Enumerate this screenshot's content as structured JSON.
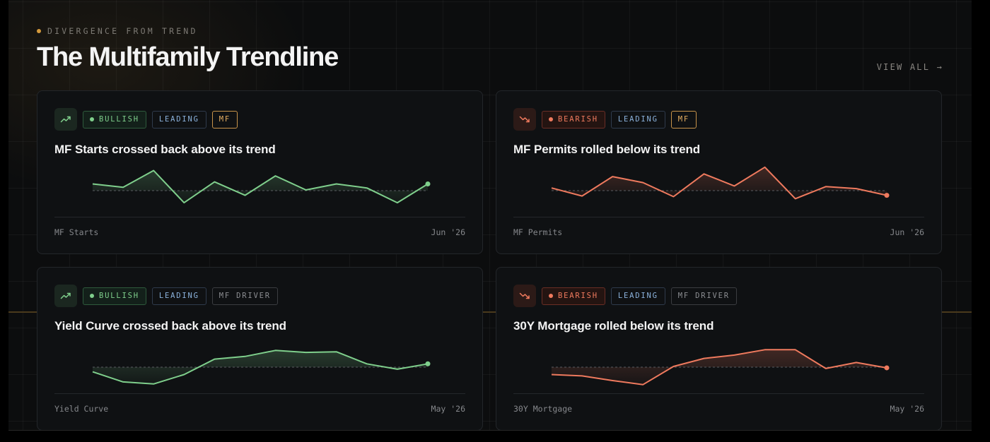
{
  "header": {
    "eyebrow": "DIVERGENCE FROM TREND",
    "title": "The Multifamily Trendline",
    "view_all": "VIEW ALL →"
  },
  "colors": {
    "bullish": "#7fcf8c",
    "bearish": "#ef7a5e",
    "leading": "#8bb2dc",
    "mf_tag": "#e5ae60",
    "accent_dot": "#d49a3c"
  },
  "cards": [
    {
      "icon": "trend-up-icon",
      "signal": "BULLISH",
      "signal_type": "bullish",
      "timing": "LEADING",
      "category": "MF",
      "category_type": "mf",
      "headline": "MF Starts crossed back above its trend",
      "series_name": "MF Starts",
      "date": "Jun '26",
      "sparkline": {
        "values": [
          0.5,
          0.25,
          1.5,
          -0.9,
          0.65,
          -0.35,
          1.1,
          0.05,
          0.5,
          0.2,
          -0.9,
          0.5
        ],
        "trend": 0.0
      }
    },
    {
      "icon": "trend-down-icon",
      "signal": "BEARISH",
      "signal_type": "bearish",
      "timing": "LEADING",
      "category": "MF",
      "category_type": "mf",
      "headline": "MF Permits rolled below its trend",
      "series_name": "MF Permits",
      "date": "Jun '26",
      "sparkline": {
        "values": [
          0.2,
          -0.4,
          1.05,
          0.6,
          -0.45,
          1.25,
          0.35,
          1.75,
          -0.6,
          0.3,
          0.15,
          -0.35
        ],
        "trend": 0.0
      }
    },
    {
      "icon": "trend-up-icon",
      "signal": "BULLISH",
      "signal_type": "bullish",
      "timing": "LEADING",
      "category": "MF DRIVER",
      "category_type": "driver",
      "headline": "Yield Curve crossed back above its trend",
      "series_name": "Yield Curve",
      "date": "May '26",
      "sparkline": {
        "values": [
          -0.35,
          -1.1,
          -1.25,
          -0.55,
          0.6,
          0.8,
          1.25,
          1.1,
          1.15,
          0.25,
          -0.15,
          0.25
        ],
        "trend": 0.0
      }
    },
    {
      "icon": "trend-down-icon",
      "signal": "BEARISH",
      "signal_type": "bearish",
      "timing": "LEADING",
      "category": "MF DRIVER",
      "category_type": "driver",
      "headline": "30Y Mortgage rolled below its trend",
      "series_name": "30Y Mortgage",
      "date": "May '26",
      "sparkline": {
        "values": [
          -0.55,
          -0.65,
          -1.0,
          -1.3,
          0.05,
          0.65,
          0.9,
          1.3,
          1.3,
          -0.1,
          0.35,
          -0.05
        ],
        "trend": 0.0
      }
    }
  ]
}
